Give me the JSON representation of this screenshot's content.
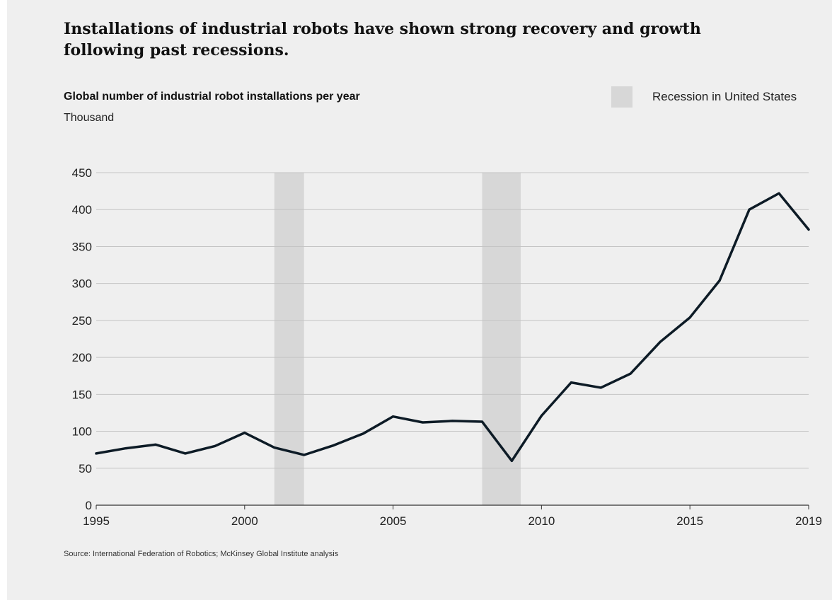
{
  "headline": "Installations of industrial robots have shown strong recovery and growth following past recessions.",
  "source": "Source: International Federation of Robotics; McKinsey Global Institute analysis",
  "legend": {
    "label": "Recession in United States",
    "color": "#d7d7d7"
  },
  "chart_data": {
    "type": "line",
    "title": "Global number of industrial robot installations per year",
    "ylabel": "Thousand",
    "xlabel": "",
    "x": [
      1995,
      1996,
      1997,
      1998,
      1999,
      2000,
      2001,
      2002,
      2003,
      2004,
      2005,
      2006,
      2007,
      2008,
      2009,
      2010,
      2011,
      2012,
      2013,
      2014,
      2015,
      2016,
      2017,
      2018,
      2019
    ],
    "series": [
      {
        "values": [
          70,
          77,
          82,
          70,
          80,
          98,
          78,
          68,
          81,
          97,
          120,
          112,
          114,
          113,
          60,
          121,
          166,
          159,
          178,
          221,
          254,
          304,
          400,
          422,
          373
        ],
        "color": "#0d1b26"
      }
    ],
    "xlim": [
      1995,
      2019
    ],
    "ylim": [
      0,
      450
    ],
    "yticks": [
      0,
      50,
      100,
      150,
      200,
      250,
      300,
      350,
      400,
      450
    ],
    "xticks": [
      1995,
      2000,
      2005,
      2010,
      2015,
      2019
    ],
    "recessions": [
      {
        "start": 2001.0,
        "end": 2002.0
      },
      {
        "start": 2008.0,
        "end": 2009.3
      }
    ],
    "grid": true,
    "legend_position": "top-right"
  }
}
